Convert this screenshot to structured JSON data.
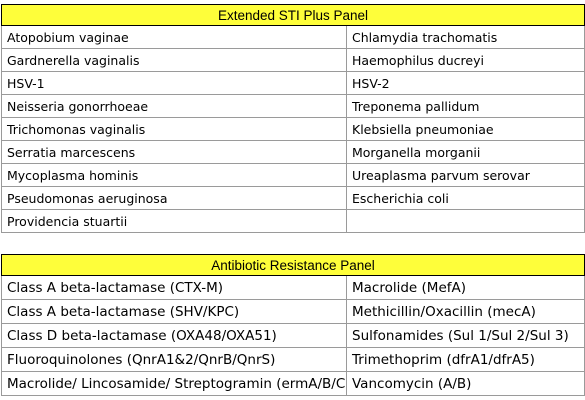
{
  "sti_panel": {
    "title": "Extended STI Plus Panel",
    "rows": [
      [
        "Atopobium vaginae",
        "Chlamydia trachomatis"
      ],
      [
        "Gardnerella vaginalis",
        "Haemophilus ducreyi"
      ],
      [
        "HSV-1",
        "HSV-2"
      ],
      [
        "Neisseria gonorrhoeae",
        "Treponema pallidum"
      ],
      [
        "Trichomonas vaginalis",
        "Klebsiella pneumoniae"
      ],
      [
        "Serratia marcescens",
        "Morganella morganii"
      ],
      [
        "Mycoplasma hominis",
        "Ureaplasma parvum serovar"
      ],
      [
        "Pseudomonas aeruginosa",
        "Escherichia coli"
      ],
      [
        "Providencia stuartii",
        ""
      ]
    ]
  },
  "resistance_panel": {
    "title": "Antibiotic Resistance Panel",
    "rows": [
      [
        "Class A beta-lactamase (CTX-M)",
        "Macrolide (MefA)"
      ],
      [
        "Class A beta-lactamase (SHV/KPC)",
        "Methicillin/Oxacillin (mecA)"
      ],
      [
        "Class D beta-lactamase (OXA48/OXA51)",
        "Sulfonamides (Sul 1/Sul 2/Sul 3)"
      ],
      [
        "Fluoroquinolones (QnrA1&2/QnrB/QnrS)",
        "Trimethoprim (dfrA1/dfrA5)"
      ],
      [
        "Macrolide/ Lincosamide/ Streptogramin (ermA/B/C)",
        "Vancomycin (A/B)"
      ]
    ]
  },
  "colors": {
    "header_fill": "#fefe3a",
    "grid_line": "#9a9a9a"
  }
}
